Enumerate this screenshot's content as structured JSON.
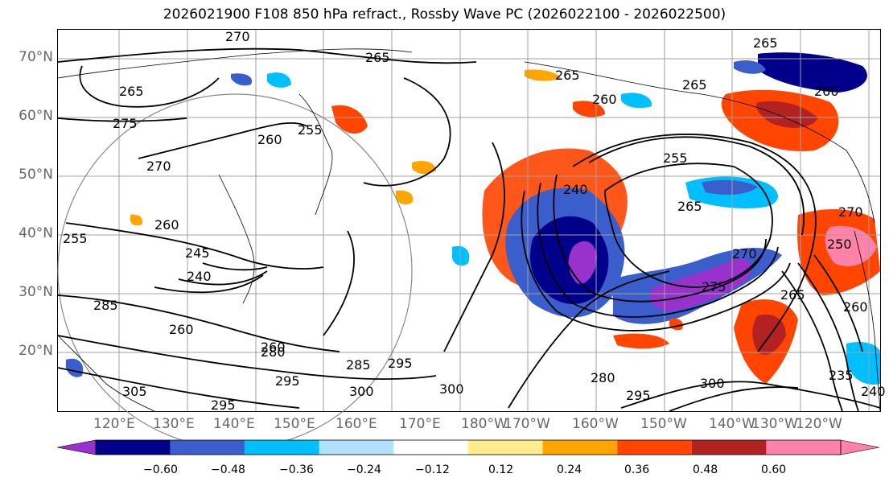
{
  "title": "2026021900 F108 850 hPa refract., Rossby Wave PC (2026022100 - 2026022500)",
  "lat_labels": [
    "70°N",
    "60°N",
    "50°N",
    "40°N",
    "30°N",
    "20°N"
  ],
  "lon_labels": [
    "120°E",
    "130°E",
    "140°E",
    "150°E",
    "160°E",
    "170°E",
    "180°W",
    "170°W",
    "160°W",
    "150°W",
    "140°W",
    "130°W",
    "120°W"
  ],
  "contour_labels": [
    "270",
    "265",
    "265",
    "265",
    "265",
    "265",
    "275",
    "260",
    "255",
    "270",
    "255",
    "260",
    "245",
    "240",
    "260",
    "285",
    "260",
    "280",
    "285",
    "295",
    "300",
    "305",
    "295",
    "295",
    "300",
    "240",
    "255",
    "265",
    "260",
    "260",
    "270",
    "275",
    "265",
    "280",
    "295",
    "300",
    "235",
    "240",
    "250",
    "270",
    "260"
  ],
  "colorbar": {
    "ticks": [
      "−0.60",
      "−0.48",
      "−0.36",
      "−0.24",
      "−0.12",
      "0.12",
      "0.24",
      "0.36",
      "0.48",
      "0.60"
    ],
    "colors": [
      "#9932cc",
      "#00008b",
      "#3a5fcd",
      "#00bfff",
      "#b0e2ff",
      "#ffffff",
      "#ffec8b",
      "#ffa500",
      "#ff4500",
      "#b22222",
      "#ff82ab",
      "#ff82ab"
    ]
  }
}
